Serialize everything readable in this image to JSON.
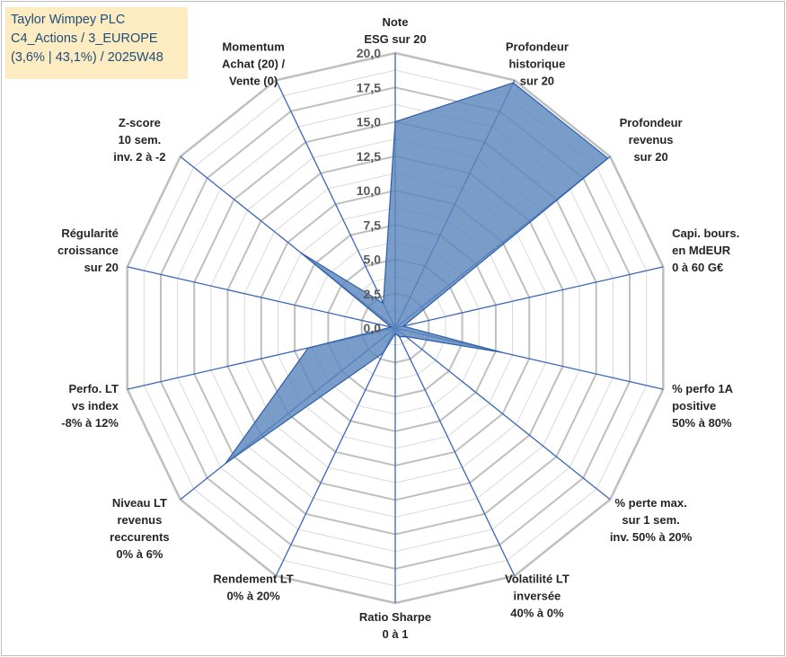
{
  "title_box": {
    "line1": "Taylor Wimpey PLC",
    "line2": "C4_Actions / 3_EUROPE",
    "line3": "(3,6% | 43,1%) / 2025W48"
  },
  "colors": {
    "fill": "#5b86bd",
    "line": "#2e5faa",
    "spoke": "#3a66b7",
    "grid_outer": "#bfbfbf",
    "grid_inner": "#d9d9d9",
    "title_bg": "#fdebc2",
    "title_text": "#1f4e79"
  },
  "chart_data": {
    "type": "radar",
    "rmin": 0,
    "rmax": 20,
    "tick_values": [
      0,
      2.5,
      5,
      7.5,
      10,
      12.5,
      15,
      17.5,
      20
    ],
    "tick_labels": [
      "0,0",
      "2,5",
      "5,0",
      "7,5",
      "10,0",
      "12,5",
      "15,0",
      "17,5",
      "20,0"
    ],
    "grid_rings": 16,
    "axes": [
      {
        "label": [
          "Note",
          "ESG sur 20"
        ],
        "value": 15.0
      },
      {
        "label": [
          "Profondeur",
          "historique",
          "sur 20"
        ],
        "value": 19.8
      },
      {
        "label": [
          "Profondeur",
          "revenus",
          "sur 20"
        ],
        "value": 19.8
      },
      {
        "label": [
          "Capi. bours.",
          "en MdEUR",
          "0 à 60 G€"
        ],
        "value": 0.6
      },
      {
        "label": [
          "% perfo 1A",
          "positive",
          "50% à 80%"
        ],
        "value": 8.0
      },
      {
        "label": [
          "% perte max.",
          "sur 1 sem.",
          "inv. 50% à 20%"
        ],
        "value": 1.0
      },
      {
        "label": [
          "Volatilité LT",
          "inversée",
          "40% à 0%"
        ],
        "value": 0.7
      },
      {
        "label": [
          "Ratio Sharpe",
          "0 à 1"
        ],
        "value": 0.4
      },
      {
        "label": [
          "Rendement LT",
          "0% à 20%"
        ],
        "value": 2.0
      },
      {
        "label": [
          "Niveau LT",
          "revenus",
          "reccurents",
          "0% à 6%"
        ],
        "value": 15.8
      },
      {
        "label": [
          "Perfo. LT",
          "vs index",
          "-8% à 12%"
        ],
        "value": 6.5
      },
      {
        "label": [
          "Régularité",
          "croissance",
          "sur 20"
        ],
        "value": 0.3
      },
      {
        "label": [
          "Z-score",
          "10 sem.",
          "inv. 2 à -2"
        ],
        "value": 8.8
      },
      {
        "label": [
          "Momentum",
          "Achat (20) /",
          "Vente (0)"
        ],
        "value": 2.0
      }
    ]
  }
}
